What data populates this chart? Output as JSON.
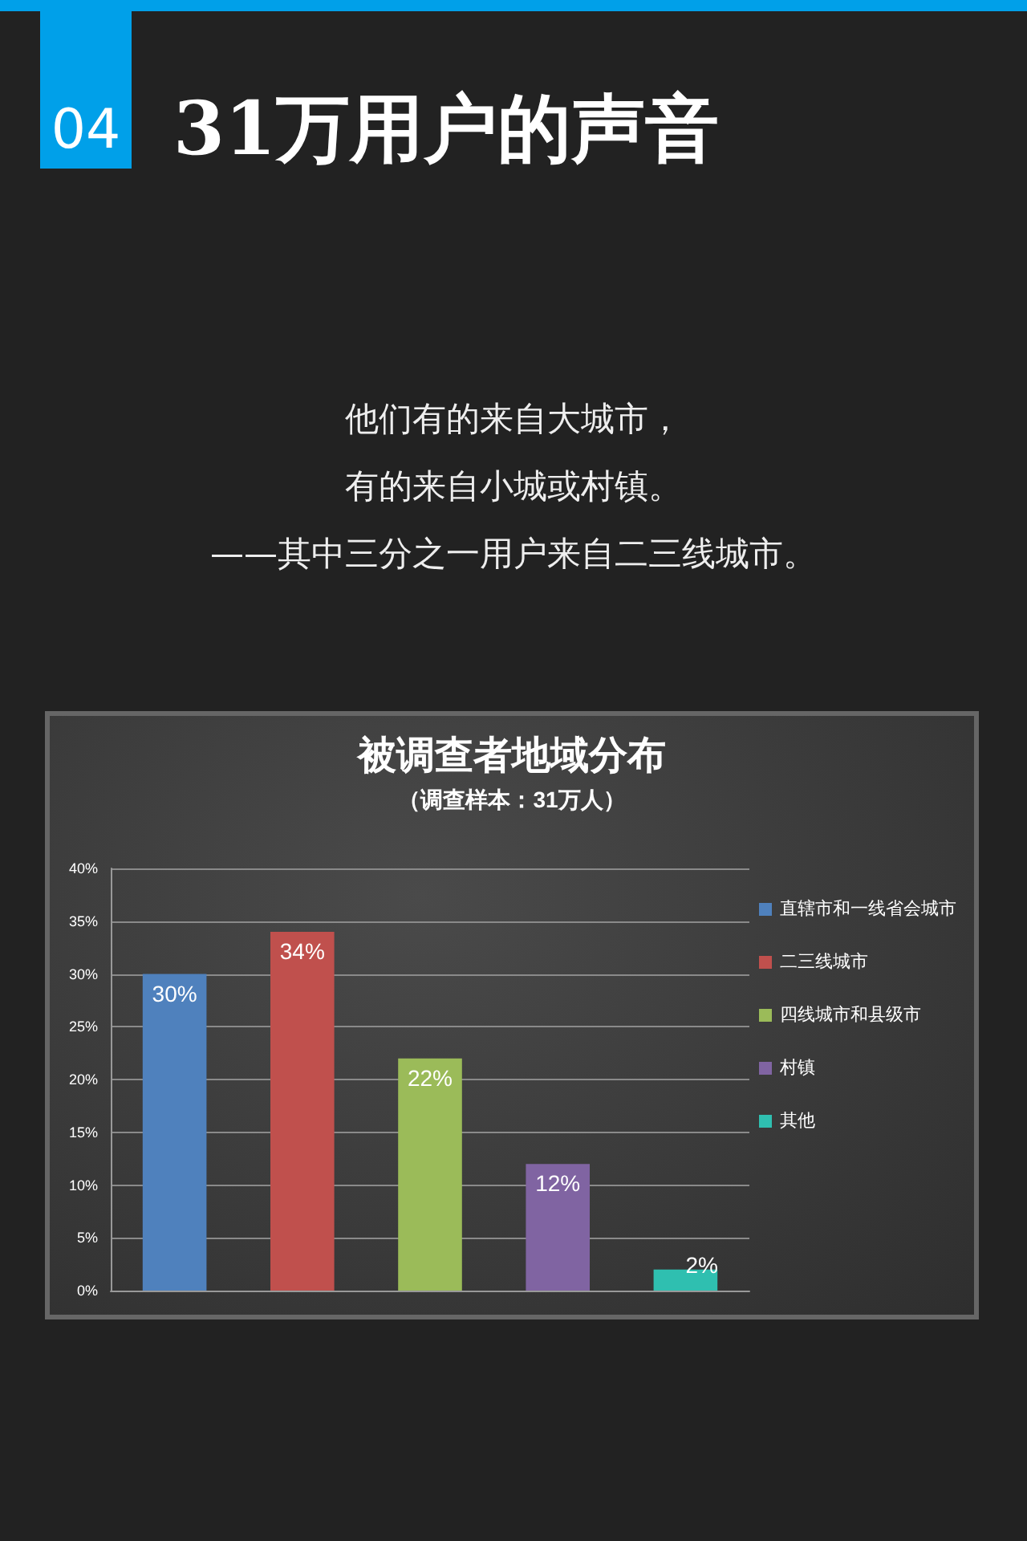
{
  "chart_data": {
    "type": "bar",
    "title": "被调查者地域分布",
    "subtitle": "（调查样本：31万人）",
    "annotations": [
      "04",
      "31万用户的声音",
      "他们有的来自大城市，",
      "有的来自小城或村镇。",
      "——其中三分之一用户来自二三线城市。"
    ],
    "categories": [
      null,
      null,
      null,
      null,
      null
    ],
    "series": [
      {
        "name": "直辖市和一线省会城市",
        "color": "#4f81bd",
        "values": [
          30,
          null,
          null,
          null,
          null
        ],
        "value_labels": [
          "30%",
          null,
          null,
          null,
          null
        ]
      },
      {
        "name": "二三线城市",
        "color": "#c0504d",
        "values": [
          null,
          34,
          null,
          null,
          null
        ],
        "value_labels": [
          null,
          "34%",
          null,
          null,
          null
        ]
      },
      {
        "name": "四线城市和县级市",
        "color": "#9bbb59",
        "values": [
          null,
          null,
          22,
          null,
          null
        ],
        "value_labels": [
          null,
          null,
          "22%",
          null,
          null
        ]
      },
      {
        "name": "村镇",
        "color": "#8064a2",
        "values": [
          null,
          null,
          null,
          12,
          null
        ],
        "value_labels": [
          null,
          null,
          null,
          "12%",
          null
        ]
      },
      {
        "name": "其他",
        "color": "#2fbfb0",
        "values": [
          null,
          null,
          null,
          null,
          2
        ],
        "value_labels": [
          null,
          null,
          null,
          null,
          "2%"
        ]
      }
    ],
    "ylim": [
      0,
      40
    ],
    "yticks": [
      {
        "value": 0,
        "label": "0%"
      },
      {
        "value": 5,
        "label": "5%"
      },
      {
        "value": 10,
        "label": "10%"
      },
      {
        "value": 15,
        "label": "15%"
      },
      {
        "value": 20,
        "label": "20%"
      },
      {
        "value": 25,
        "label": "25%"
      },
      {
        "value": 30,
        "label": "30%"
      },
      {
        "value": 35,
        "label": "35%"
      },
      {
        "value": 40,
        "label": "40%"
      }
    ],
    "grid": "y",
    "legend": "right"
  }
}
